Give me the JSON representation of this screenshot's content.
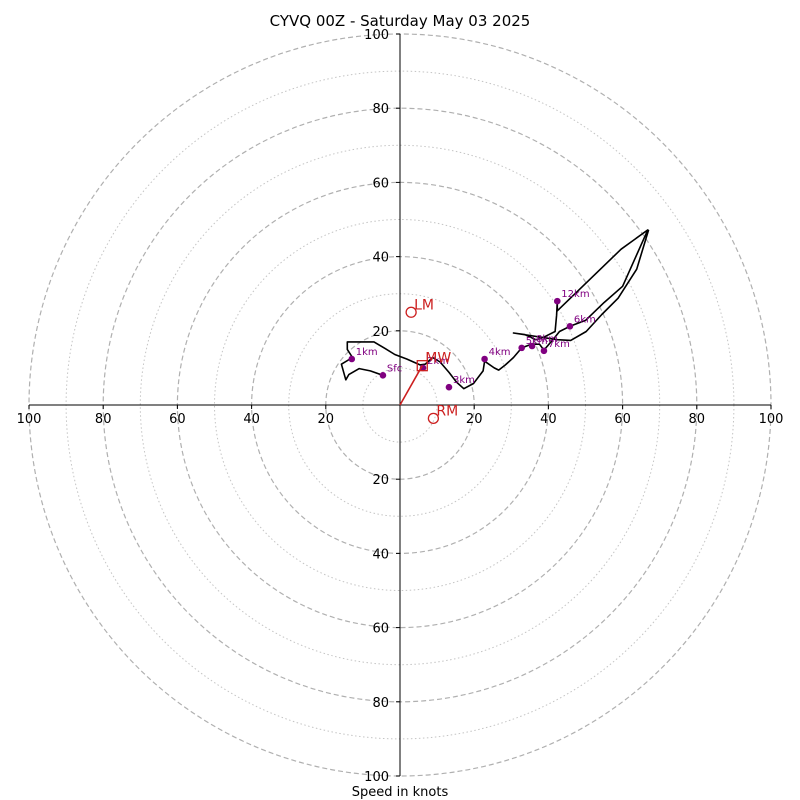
{
  "chart_data": {
    "type": "line",
    "title": "CYVQ 00Z - Saturday May 03 2025",
    "xlabel": "Speed in knots",
    "axis_max": 100,
    "ring_major": [
      20,
      40,
      60,
      80,
      100
    ],
    "ring_minor": [
      10,
      30,
      50,
      70,
      90
    ],
    "x_ticks": [
      "100",
      "80",
      "60",
      "40",
      "20",
      "20",
      "40",
      "60",
      "80",
      "100"
    ],
    "y_ticks_up": [
      "20",
      "40",
      "60",
      "80",
      "100"
    ],
    "y_ticks_down": [
      "20",
      "40",
      "60",
      "80",
      "100"
    ],
    "hodograph": {
      "color": "#000000",
      "points": [
        [
          -4.6,
          8
        ],
        [
          -8,
          9.2
        ],
        [
          -11,
          9.8
        ],
        [
          -13.8,
          8.2
        ],
        [
          -14.6,
          6.8
        ],
        [
          -15.8,
          11
        ],
        [
          -12.8,
          12.8
        ],
        [
          -14.2,
          15
        ],
        [
          -14.2,
          17
        ],
        [
          -7,
          17
        ],
        [
          -4,
          15.2
        ],
        [
          -1.4,
          13.6
        ],
        [
          1.8,
          12.4
        ],
        [
          5.4,
          10.8
        ],
        [
          6.8,
          11
        ],
        [
          8.8,
          12.8
        ],
        [
          10.8,
          11.6
        ],
        [
          13.2,
          8.8
        ],
        [
          15.2,
          6.2
        ],
        [
          17.2,
          4.4
        ],
        [
          19.8,
          5.8
        ],
        [
          22.4,
          9.2
        ],
        [
          22.8,
          11.8
        ],
        [
          25.4,
          10
        ],
        [
          26.6,
          9.4
        ],
        [
          28.4,
          10.8
        ],
        [
          30.6,
          12.8
        ],
        [
          32.8,
          15.4
        ],
        [
          35.4,
          16.4
        ],
        [
          37.6,
          16.4
        ],
        [
          38.8,
          14.8
        ],
        [
          41.2,
          17.6
        ],
        [
          43,
          19.8
        ],
        [
          45.8,
          21.2
        ],
        [
          50,
          22.8
        ],
        [
          55,
          27.6
        ],
        [
          60,
          32
        ],
        [
          66.8,
          47.2
        ],
        [
          59.6,
          42
        ],
        [
          42.4,
          25.4
        ],
        [
          42.4,
          28
        ],
        [
          42.2,
          24.2
        ],
        [
          41.8,
          19.8
        ],
        [
          39,
          18.4
        ],
        [
          36.6,
          17.6
        ],
        [
          33.6,
          19
        ],
        [
          30.6,
          19.4
        ],
        [
          42.4,
          17.6
        ],
        [
          46,
          17.4
        ],
        [
          50.2,
          19.8
        ],
        [
          54.4,
          24.4
        ],
        [
          58.8,
          28.8
        ],
        [
          63.8,
          36.6
        ],
        [
          67,
          47.2
        ]
      ]
    },
    "height_markers": [
      {
        "label": "Sfc",
        "x": -4.6,
        "y": 8
      },
      {
        "label": "1km",
        "x": -13,
        "y": 12.4
      },
      {
        "label": "2km",
        "x": 6.2,
        "y": 10
      },
      {
        "label": "3km",
        "x": 13.2,
        "y": 4.8
      },
      {
        "label": "4km",
        "x": 22.8,
        "y": 12.4
      },
      {
        "label": "5km",
        "x": 32.8,
        "y": 15.4
      },
      {
        "label": "6km",
        "x": 45.8,
        "y": 21.2
      },
      {
        "label": "7km",
        "x": 38.8,
        "y": 14.6
      },
      {
        "label": "8km",
        "x": 35.6,
        "y": 15.9
      },
      {
        "label": "12km",
        "x": 42.4,
        "y": 28
      }
    ],
    "motion_markers": [
      {
        "label": "LM",
        "x": 3,
        "y": 25,
        "symbol": "circle"
      },
      {
        "label": "MW",
        "x": 6,
        "y": 10.6,
        "symbol": "square"
      },
      {
        "label": "RM",
        "x": 9,
        "y": -3.6,
        "symbol": "circle"
      }
    ],
    "shear_vector": {
      "x1": 0,
      "y1": 0,
      "x2": 6,
      "y2": 10.6
    },
    "colors": {
      "trace": "#000000",
      "markers": "#800080",
      "motion": "#cc1f1f",
      "grid": "#b0b0b0"
    }
  }
}
